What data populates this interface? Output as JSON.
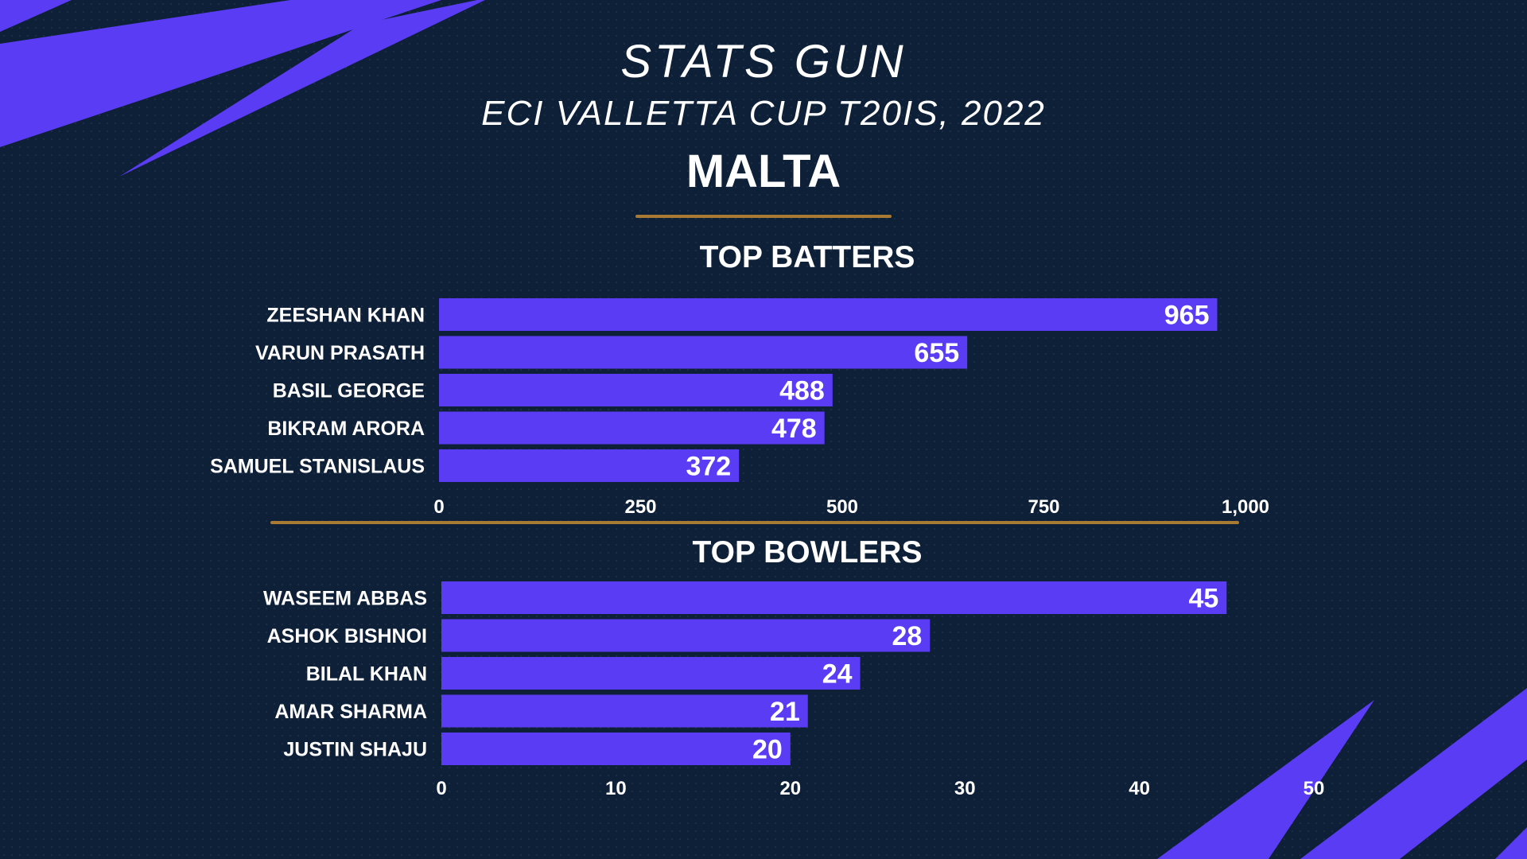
{
  "header": {
    "brand": "STATS GUN",
    "subtitle": "ECI VALLETTA CUP T20IS, 2022",
    "team": "MALTA"
  },
  "colors": {
    "background": "#0e1f38",
    "bar": "#5a3cf5",
    "accent_line": "#a87a33",
    "text": "#ffffff"
  },
  "chart_data": [
    {
      "type": "bar",
      "orientation": "horizontal",
      "title": "TOP BATTERS",
      "categories": [
        "ZEESHAN KHAN",
        "VARUN PRASATH",
        "BASIL GEORGE",
        "BIKRAM ARORA",
        "SAMUEL STANISLAUS"
      ],
      "values": [
        965,
        655,
        488,
        478,
        372
      ],
      "xlim": [
        0,
        1000
      ],
      "ticks": [
        0,
        250,
        500,
        750,
        1000
      ],
      "tick_labels": [
        "0",
        "250",
        "500",
        "750",
        "1,000"
      ],
      "grid": false
    },
    {
      "type": "bar",
      "orientation": "horizontal",
      "title": "TOP BOWLERS",
      "categories": [
        "WASEEM ABBAS",
        "ASHOK BISHNOI",
        "BILAL KHAN",
        "AMAR SHARMA",
        "JUSTIN SHAJU"
      ],
      "values": [
        45,
        28,
        24,
        21,
        20
      ],
      "xlim": [
        0,
        50
      ],
      "ticks": [
        0,
        10,
        20,
        30,
        40,
        50
      ],
      "tick_labels": [
        "0",
        "10",
        "20",
        "30",
        "40",
        "50"
      ],
      "grid": false
    }
  ]
}
